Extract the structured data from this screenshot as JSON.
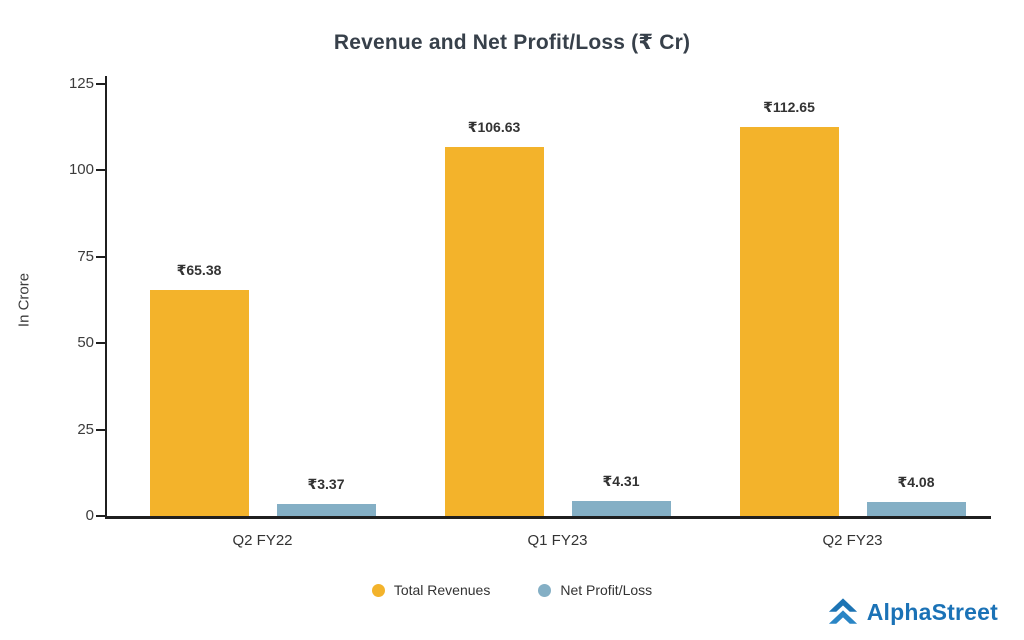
{
  "chart_data": {
    "type": "bar",
    "title": "Revenue and Net Profit/Loss (₹ Cr)",
    "ylabel": "In Crore",
    "categories": [
      "Q2 FY22",
      "Q1 FY23",
      "Q2 FY23"
    ],
    "series": [
      {
        "name": "Total Revenues",
        "color": "#f3b32b",
        "values": [
          65.38,
          106.63,
          112.65
        ],
        "labels": [
          "₹65.38",
          "₹106.63",
          "₹112.65"
        ]
      },
      {
        "name": "Net Profit/Loss",
        "color": "#84afc5",
        "values": [
          3.37,
          4.31,
          4.08
        ],
        "labels": [
          "₹3.37",
          "₹4.31",
          "₹4.08"
        ]
      }
    ],
    "ylim": [
      0,
      125
    ],
    "yticks": [
      0,
      25,
      50,
      75,
      100,
      125
    ],
    "grid": false,
    "legend_position": "bottom"
  },
  "branding": {
    "logo_text": "AlphaStreet",
    "logo_color": "#1b72b6"
  }
}
